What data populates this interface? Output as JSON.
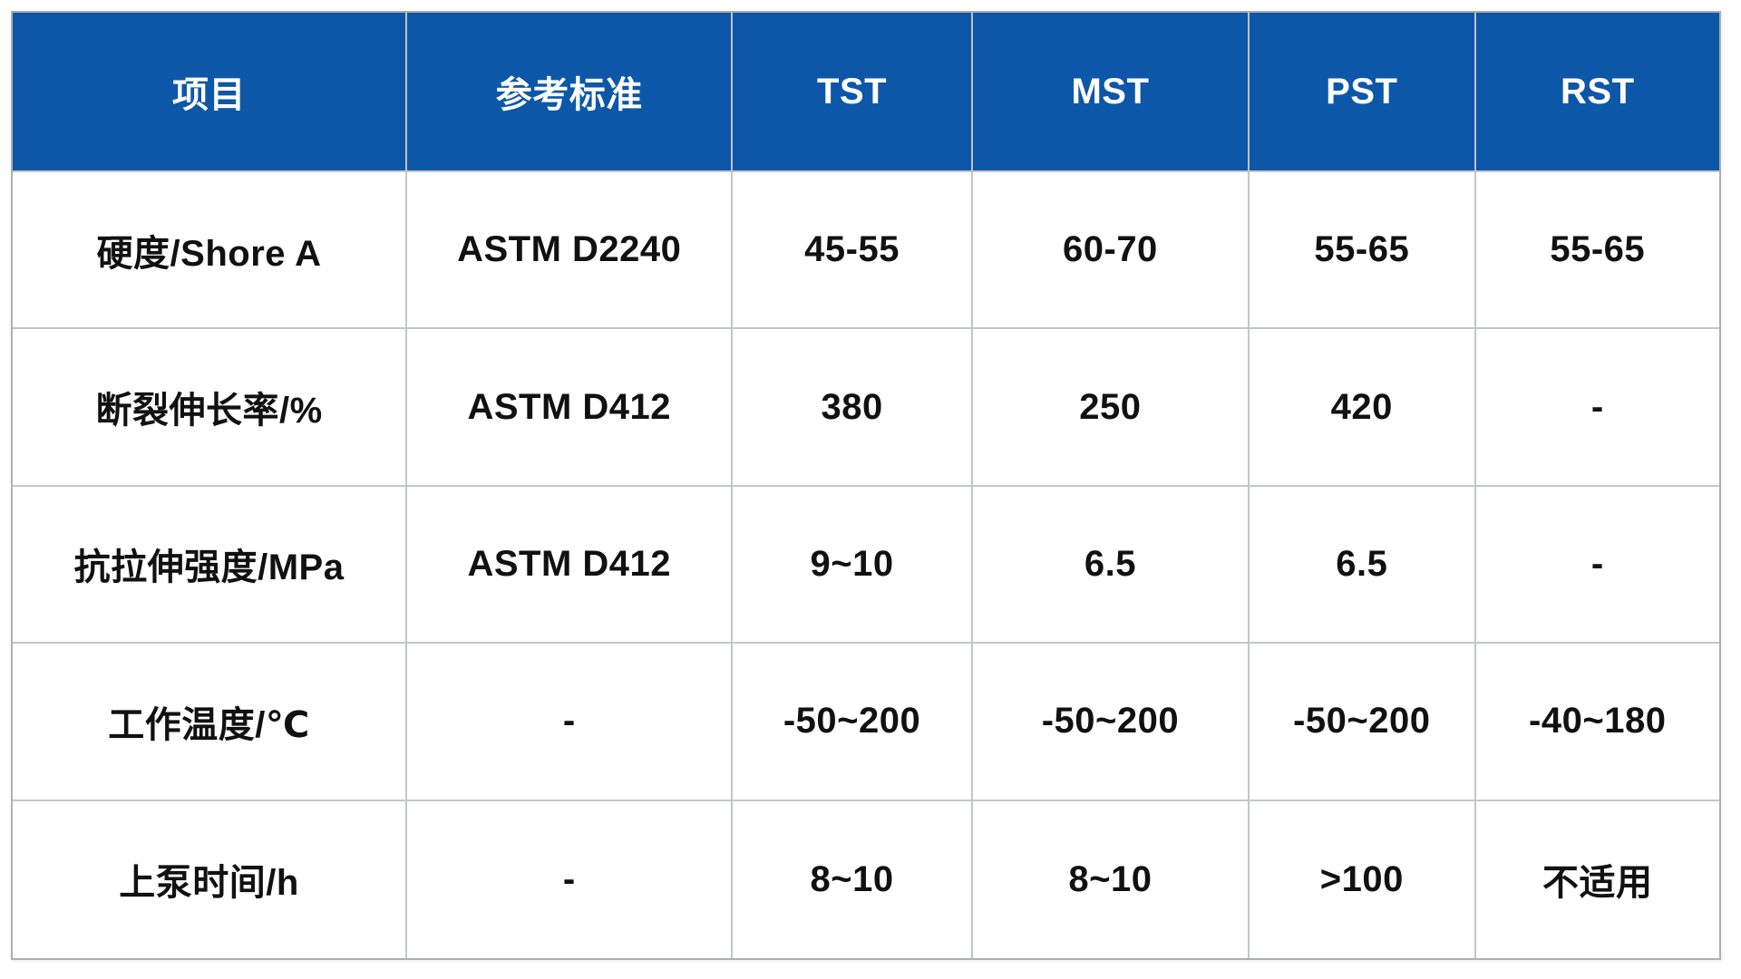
{
  "table": {
    "title": "material-properties-spec-table",
    "columns": [
      "项目",
      "参考标准",
      "TST",
      "MST",
      "PST",
      "RST"
    ],
    "rows": [
      {
        "cells": [
          "硬度/Shore A",
          "ASTM D2240",
          "45-55",
          "60-70",
          "55-65",
          "55-65"
        ]
      },
      {
        "cells": [
          "断裂伸长率/%",
          "ASTM D412",
          "380",
          "250",
          "420",
          "-"
        ]
      },
      {
        "cells": [
          "抗拉伸强度/MPa",
          "ASTM D412",
          "9~10",
          "6.5",
          "6.5",
          "-"
        ]
      },
      {
        "cells": [
          "工作温度/℃",
          "-",
          "-50~200",
          "-50~200",
          "-50~200",
          "-40~180"
        ]
      },
      {
        "cells": [
          "上泵时间/h",
          "-",
          "8~10",
          "8~10",
          ">100",
          "不适用"
        ]
      }
    ],
    "colors": {
      "header_bg": "#0D57A8",
      "header_text": "#FFFFFF",
      "cell_text": "#111111",
      "grid_line": "#C3C6C9",
      "outer_border": "#ADB0B3",
      "background": "#FFFFFF"
    }
  }
}
